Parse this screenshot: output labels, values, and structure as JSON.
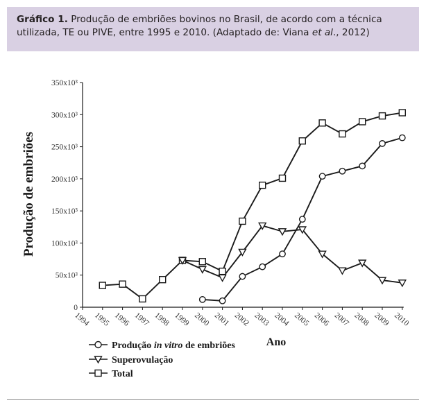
{
  "caption": {
    "label": "Gráfico 1.",
    "text_part1": " Produção de embriões bovinos no Brasil, de acordo com a técnica utilizada, TE ou PIVE, entre 1995 e 2010. (Adaptado de: Viana ",
    "text_italic": "et al",
    "text_part2": "., 2012)"
  },
  "colors": {
    "caption_bg": "#d9d0e3",
    "line": "#1a1a1a",
    "marker_fill": "#ffffff"
  },
  "chart_data": {
    "type": "line",
    "title": "",
    "xlabel": "Ano",
    "ylabel": "Produção de embriões",
    "x": [
      1994,
      1995,
      1996,
      1997,
      1998,
      1999,
      2000,
      2001,
      2002,
      2003,
      2004,
      2005,
      2006,
      2007,
      2008,
      2009,
      2010
    ],
    "x_tick_labels": [
      "1994",
      "1995",
      "1996",
      "1997",
      "1998",
      "1999",
      "2000",
      "2001",
      "2002",
      "2003",
      "2004",
      "2005",
      "2006",
      "2007",
      "2008",
      "2009",
      "2010"
    ],
    "ylim": [
      0,
      350000
    ],
    "y_ticks": [
      0,
      50000,
      100000,
      150000,
      200000,
      250000,
      300000,
      350000
    ],
    "y_tick_labels": [
      "0",
      "50x10³",
      "100x10³",
      "150x10³",
      "200x10³",
      "250x10³",
      "300x10³",
      "350x10³"
    ],
    "grid": false,
    "legend_position": "bottom-left",
    "series": [
      {
        "name": "Produção in vitro de embriões",
        "name_plain": "Produção ",
        "name_italic": "in vitro",
        "name_rest": " de embriões",
        "marker": "circle",
        "x": [
          2000,
          2001,
          2002,
          2003,
          2004,
          2005,
          2006,
          2007,
          2008,
          2009,
          2010
        ],
        "values": [
          12000,
          10000,
          48000,
          63000,
          83000,
          137000,
          204000,
          212000,
          220000,
          255000,
          264000
        ]
      },
      {
        "name": "Superovulação",
        "marker": "triangle-down",
        "x": [
          1999,
          2000,
          2001,
          2002,
          2003,
          2004,
          2005,
          2006,
          2007,
          2008,
          2009,
          2010
        ],
        "values": [
          73000,
          59000,
          46000,
          86000,
          127000,
          118000,
          121000,
          83000,
          57000,
          69000,
          42000,
          38000
        ]
      },
      {
        "name": "Total",
        "marker": "square",
        "x": [
          1995,
          1996,
          1997,
          1998,
          1999,
          2000,
          2001,
          2002,
          2003,
          2004,
          2005,
          2006,
          2007,
          2008,
          2009,
          2010
        ],
        "values": [
          34000,
          36000,
          13000,
          43000,
          73000,
          71000,
          56000,
          134000,
          190000,
          201000,
          259000,
          287000,
          270000,
          289000,
          298000,
          303000
        ]
      }
    ]
  }
}
